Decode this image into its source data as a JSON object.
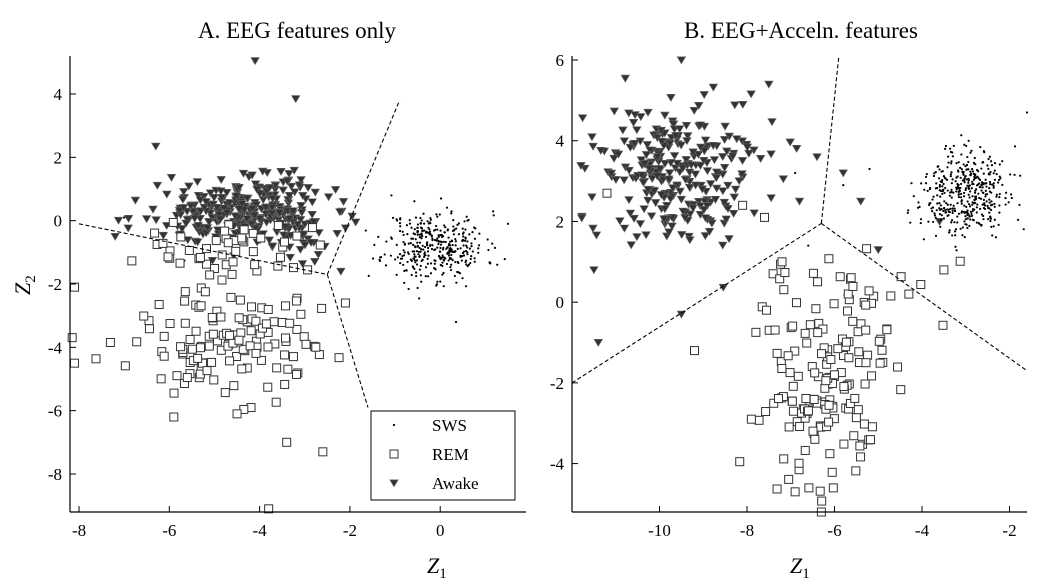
{
  "chart_data": [
    {
      "type": "scatter",
      "title": "A. EEG features only",
      "xlabel": "Z",
      "xlabel_sub": "1",
      "ylabel": "Z",
      "ylabel_sub": "2",
      "xlim": [
        -8.2,
        1.9
      ],
      "ylim": [
        -9.2,
        5.2
      ],
      "xticks": [
        -8,
        -6,
        -4,
        -2,
        0
      ],
      "yticks": [
        -8,
        -6,
        -4,
        -2,
        0,
        2,
        4
      ],
      "legend": {
        "placement": "bottom-right",
        "entries": [
          {
            "label": "SWS",
            "marker": "dot"
          },
          {
            "label": "REM",
            "marker": "square"
          },
          {
            "label": "Awake",
            "marker": "triangle"
          }
        ]
      },
      "clusters": [
        {
          "series": "SWS",
          "n": 380,
          "cx": -0.1,
          "cy": -0.8,
          "sx": 0.55,
          "sy": 0.55,
          "seed": 11
        },
        {
          "series": "Awake",
          "n": 330,
          "cx": -4.3,
          "cy": 0.2,
          "sx": 0.95,
          "sy": 0.55,
          "seed": 22
        },
        {
          "series": "REM",
          "n": 45,
          "cx": -4.6,
          "cy": -1.0,
          "sx": 0.9,
          "sy": 0.5,
          "seed": 33
        },
        {
          "series": "REM",
          "n": 130,
          "cx": -4.7,
          "cy": -3.7,
          "sx": 1.15,
          "sy": 1.0,
          "seed": 44
        }
      ],
      "outliers": [
        {
          "series": "Awake",
          "x": -4.1,
          "y": 5.05
        },
        {
          "series": "Awake",
          "x": -3.2,
          "y": 3.85
        },
        {
          "series": "Awake",
          "x": -7.2,
          "y": -0.5
        },
        {
          "series": "Awake",
          "x": -6.3,
          "y": 2.35
        },
        {
          "series": "Awake",
          "x": -2.2,
          "y": -1.6
        },
        {
          "series": "REM",
          "x": -8.1,
          "y": -4.5
        },
        {
          "series": "REM",
          "x": -8.1,
          "y": -2.1
        },
        {
          "series": "REM",
          "x": -3.8,
          "y": -9.1
        },
        {
          "series": "REM",
          "x": -2.6,
          "y": -7.3
        },
        {
          "series": "REM",
          "x": -3.4,
          "y": -7.0
        },
        {
          "series": "REM",
          "x": -4.5,
          "y": -6.1
        },
        {
          "series": "REM",
          "x": -5.9,
          "y": -6.2
        },
        {
          "series": "REM",
          "x": -2.1,
          "y": -2.6
        },
        {
          "series": "SWS",
          "x": 1.5,
          "y": -0.1
        },
        {
          "series": "SWS",
          "x": 0.35,
          "y": -3.2
        },
        {
          "series": "SWS",
          "x": -7.0,
          "y": 0.1
        }
      ],
      "boundaries": [
        [
          [
            -8.0,
            -0.1
          ],
          [
            -2.5,
            -1.7
          ]
        ],
        [
          [
            -2.5,
            -1.7
          ],
          [
            -0.9,
            3.8
          ]
        ],
        [
          [
            -2.5,
            -1.7
          ],
          [
            -1.6,
            -5.9
          ]
        ]
      ]
    },
    {
      "type": "scatter",
      "title": "B. EEG+Acceln. features",
      "xlabel": "Z",
      "xlabel_sub": "1",
      "xlim": [
        -12.0,
        -1.6
      ],
      "ylim": [
        -5.2,
        6.1
      ],
      "xticks": [
        -10,
        -8,
        -6,
        -4,
        -2
      ],
      "yticks": [
        -4,
        -2,
        0,
        2,
        4,
        6
      ],
      "clusters": [
        {
          "series": "SWS",
          "n": 430,
          "cx": -3.0,
          "cy": 2.7,
          "sx": 0.5,
          "sy": 0.5,
          "seed": 55
        },
        {
          "series": "Awake",
          "n": 280,
          "cx": -9.6,
          "cy": 3.1,
          "sx": 0.9,
          "sy": 0.85,
          "seed": 66
        },
        {
          "series": "REM",
          "n": 60,
          "cx": -6.0,
          "cy": -0.3,
          "sx": 1.2,
          "sy": 0.8,
          "seed": 77
        },
        {
          "series": "REM",
          "n": 110,
          "cx": -6.2,
          "cy": -2.6,
          "sx": 0.6,
          "sy": 0.95,
          "seed": 88
        }
      ],
      "outliers": [
        {
          "series": "Awake",
          "x": -9.5,
          "y": 6.0
        },
        {
          "series": "Awake",
          "x": -7.5,
          "y": 5.4
        },
        {
          "series": "Awake",
          "x": -11.4,
          "y": -1.0
        },
        {
          "series": "Awake",
          "x": -11.5,
          "y": 0.8
        },
        {
          "series": "Awake",
          "x": -9.5,
          "y": -0.3
        },
        {
          "series": "Awake",
          "x": -6.4,
          "y": 3.6
        },
        {
          "series": "Awake",
          "x": -5.8,
          "y": 3.2
        },
        {
          "series": "Awake",
          "x": -5.4,
          "y": 2.5
        },
        {
          "series": "Awake",
          "x": -5.0,
          "y": 1.3
        },
        {
          "series": "Awake",
          "x": -3.6,
          "y": 2.0
        },
        {
          "series": "Awake",
          "x": -6.8,
          "y": 2.5
        },
        {
          "series": "Awake",
          "x": -5.7,
          "y": 0.1
        },
        {
          "series": "REM",
          "x": -6.9,
          "y": -4.7
        },
        {
          "series": "REM",
          "x": -6.3,
          "y": -5.2
        },
        {
          "series": "REM",
          "x": -9.2,
          "y": -1.2
        },
        {
          "series": "REM",
          "x": -7.9,
          "y": -2.9
        },
        {
          "series": "REM",
          "x": -11.2,
          "y": 2.7
        },
        {
          "series": "REM",
          "x": -8.1,
          "y": 2.4
        },
        {
          "series": "REM",
          "x": -7.6,
          "y": 2.1
        },
        {
          "series": "REM",
          "x": -3.5,
          "y": 0.8
        },
        {
          "series": "REM",
          "x": -4.3,
          "y": 0.2
        },
        {
          "series": "REM",
          "x": -7.2,
          "y": 1.0
        },
        {
          "series": "SWS",
          "x": -1.6,
          "y": 4.7
        },
        {
          "series": "SWS",
          "x": -6.6,
          "y": 1.4
        },
        {
          "series": "SWS",
          "x": -5.2,
          "y": 3.3
        },
        {
          "series": "SWS",
          "x": -6.9,
          "y": 3.2
        },
        {
          "series": "SWS",
          "x": -5.8,
          "y": 2.9
        }
      ],
      "boundaries": [
        [
          [
            -12.0,
            -2.0
          ],
          [
            -6.3,
            1.95
          ]
        ],
        [
          [
            -6.3,
            1.95
          ],
          [
            -5.9,
            6.1
          ]
        ],
        [
          [
            -6.3,
            1.95
          ],
          [
            -1.6,
            -1.7
          ]
        ]
      ]
    }
  ]
}
